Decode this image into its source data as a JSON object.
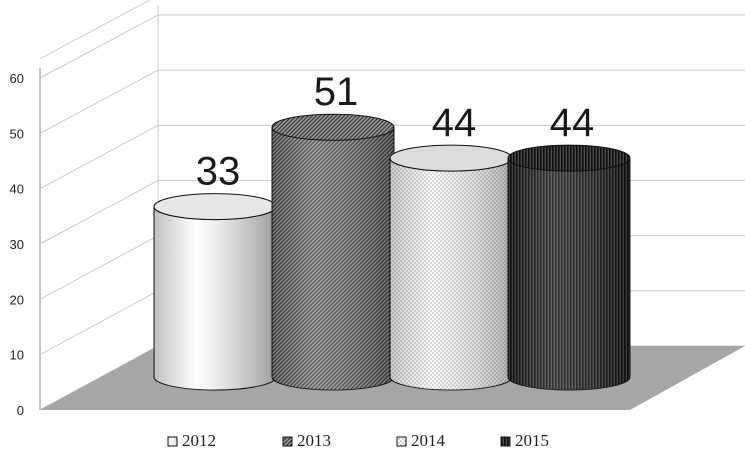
{
  "chart_data": {
    "type": "bar",
    "categories": [
      "2012",
      "2013",
      "2014",
      "2015"
    ],
    "values": [
      33,
      51,
      44,
      44
    ],
    "ylim": [
      0,
      60
    ],
    "yticks": [
      0,
      10,
      20,
      30,
      40,
      50,
      60
    ],
    "grid": true,
    "legend": "bottom",
    "style": "3d-cylinder",
    "data_labels": [
      "33",
      "51",
      "44",
      "44"
    ],
    "series": [
      {
        "name": "2012",
        "value": 33,
        "pattern": "white"
      },
      {
        "name": "2013",
        "value": 51,
        "pattern": "diagonal-hatch"
      },
      {
        "name": "2014",
        "value": 44,
        "pattern": "dots"
      },
      {
        "name": "2015",
        "value": 44,
        "pattern": "vertical-lines-dark"
      }
    ]
  },
  "colors": {
    "floor": "#a6a6a6",
    "grid": "#c8c8c8",
    "axis": "#888888"
  }
}
